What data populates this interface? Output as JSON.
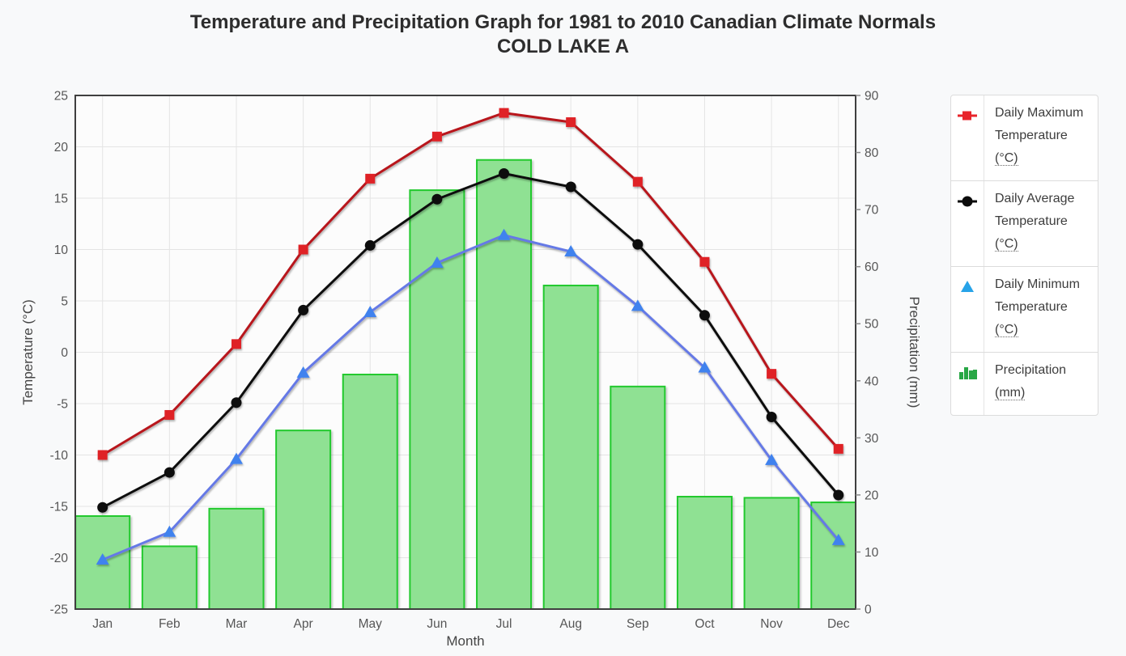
{
  "title": {
    "line1": "Temperature and Precipitation Graph for 1981 to 2010 Canadian Climate Normals",
    "line2": "COLD LAKE A"
  },
  "chart_data": {
    "type": "combo-bar-line",
    "categories": [
      "Jan",
      "Feb",
      "Mar",
      "Apr",
      "May",
      "Jun",
      "Jul",
      "Aug",
      "Sep",
      "Oct",
      "Nov",
      "Dec"
    ],
    "series": [
      {
        "name": "Daily Maximum Temperature",
        "unit": "(°C)",
        "type": "line",
        "marker": "square",
        "axis": "left",
        "line_color": "#b8151c",
        "marker_color": "#df2127",
        "legend_color": "#e8242b",
        "values": [
          -10.0,
          -6.1,
          0.8,
          10.0,
          16.9,
          21.0,
          23.3,
          22.4,
          16.6,
          8.8,
          -2.1,
          -9.4
        ]
      },
      {
        "name": "Daily Average Temperature",
        "unit": "(°C)",
        "type": "line",
        "marker": "circle",
        "axis": "left",
        "line_color": "#0c0c0c",
        "marker_color": "#0c0c0c",
        "legend_color": "#0c0c0c",
        "values": [
          -15.1,
          -11.7,
          -4.9,
          4.1,
          10.4,
          14.9,
          17.4,
          16.1,
          10.5,
          3.6,
          -6.3,
          -13.9
        ]
      },
      {
        "name": "Daily Minimum Temperature",
        "unit": "(°C)",
        "type": "line",
        "marker": "triangle",
        "axis": "left",
        "line_color": "#6579e6",
        "marker_color": "#3f82ee",
        "legend_color": "#27a3e8",
        "values": [
          -20.2,
          -17.5,
          -10.4,
          -2.0,
          3.9,
          8.7,
          11.4,
          9.8,
          4.5,
          -1.5,
          -10.5,
          -18.3
        ]
      },
      {
        "name": "Precipitation",
        "unit": "(mm)",
        "type": "bar",
        "axis": "right",
        "fill_color": "#8fe193",
        "border_color": "#21c92d",
        "legend_color": "#28a745",
        "values": [
          16.3,
          11.0,
          17.6,
          31.3,
          41.1,
          73.4,
          78.7,
          56.7,
          39.0,
          19.7,
          19.5,
          18.7
        ]
      }
    ],
    "left_axis": {
      "title": "Temperature (°C)",
      "min": -25,
      "max": 25,
      "step": 5,
      "ticks": [
        25,
        20,
        15,
        10,
        5,
        0,
        -5,
        -10,
        -15,
        -20,
        -25
      ]
    },
    "right_axis": {
      "title": "Precipitation (mm)",
      "min": 0,
      "max": 90,
      "step": 10,
      "ticks": [
        90,
        80,
        70,
        60,
        50,
        40,
        30,
        20,
        10,
        0
      ]
    },
    "x_axis": {
      "title": "Month"
    },
    "grid": true,
    "legend_position": "right",
    "colors": {
      "grid": "#e4e4e4",
      "plot_border": "#3f3f3f",
      "plot_bg": "#fcfcfc",
      "page_bg": "#f8f9fa"
    }
  }
}
